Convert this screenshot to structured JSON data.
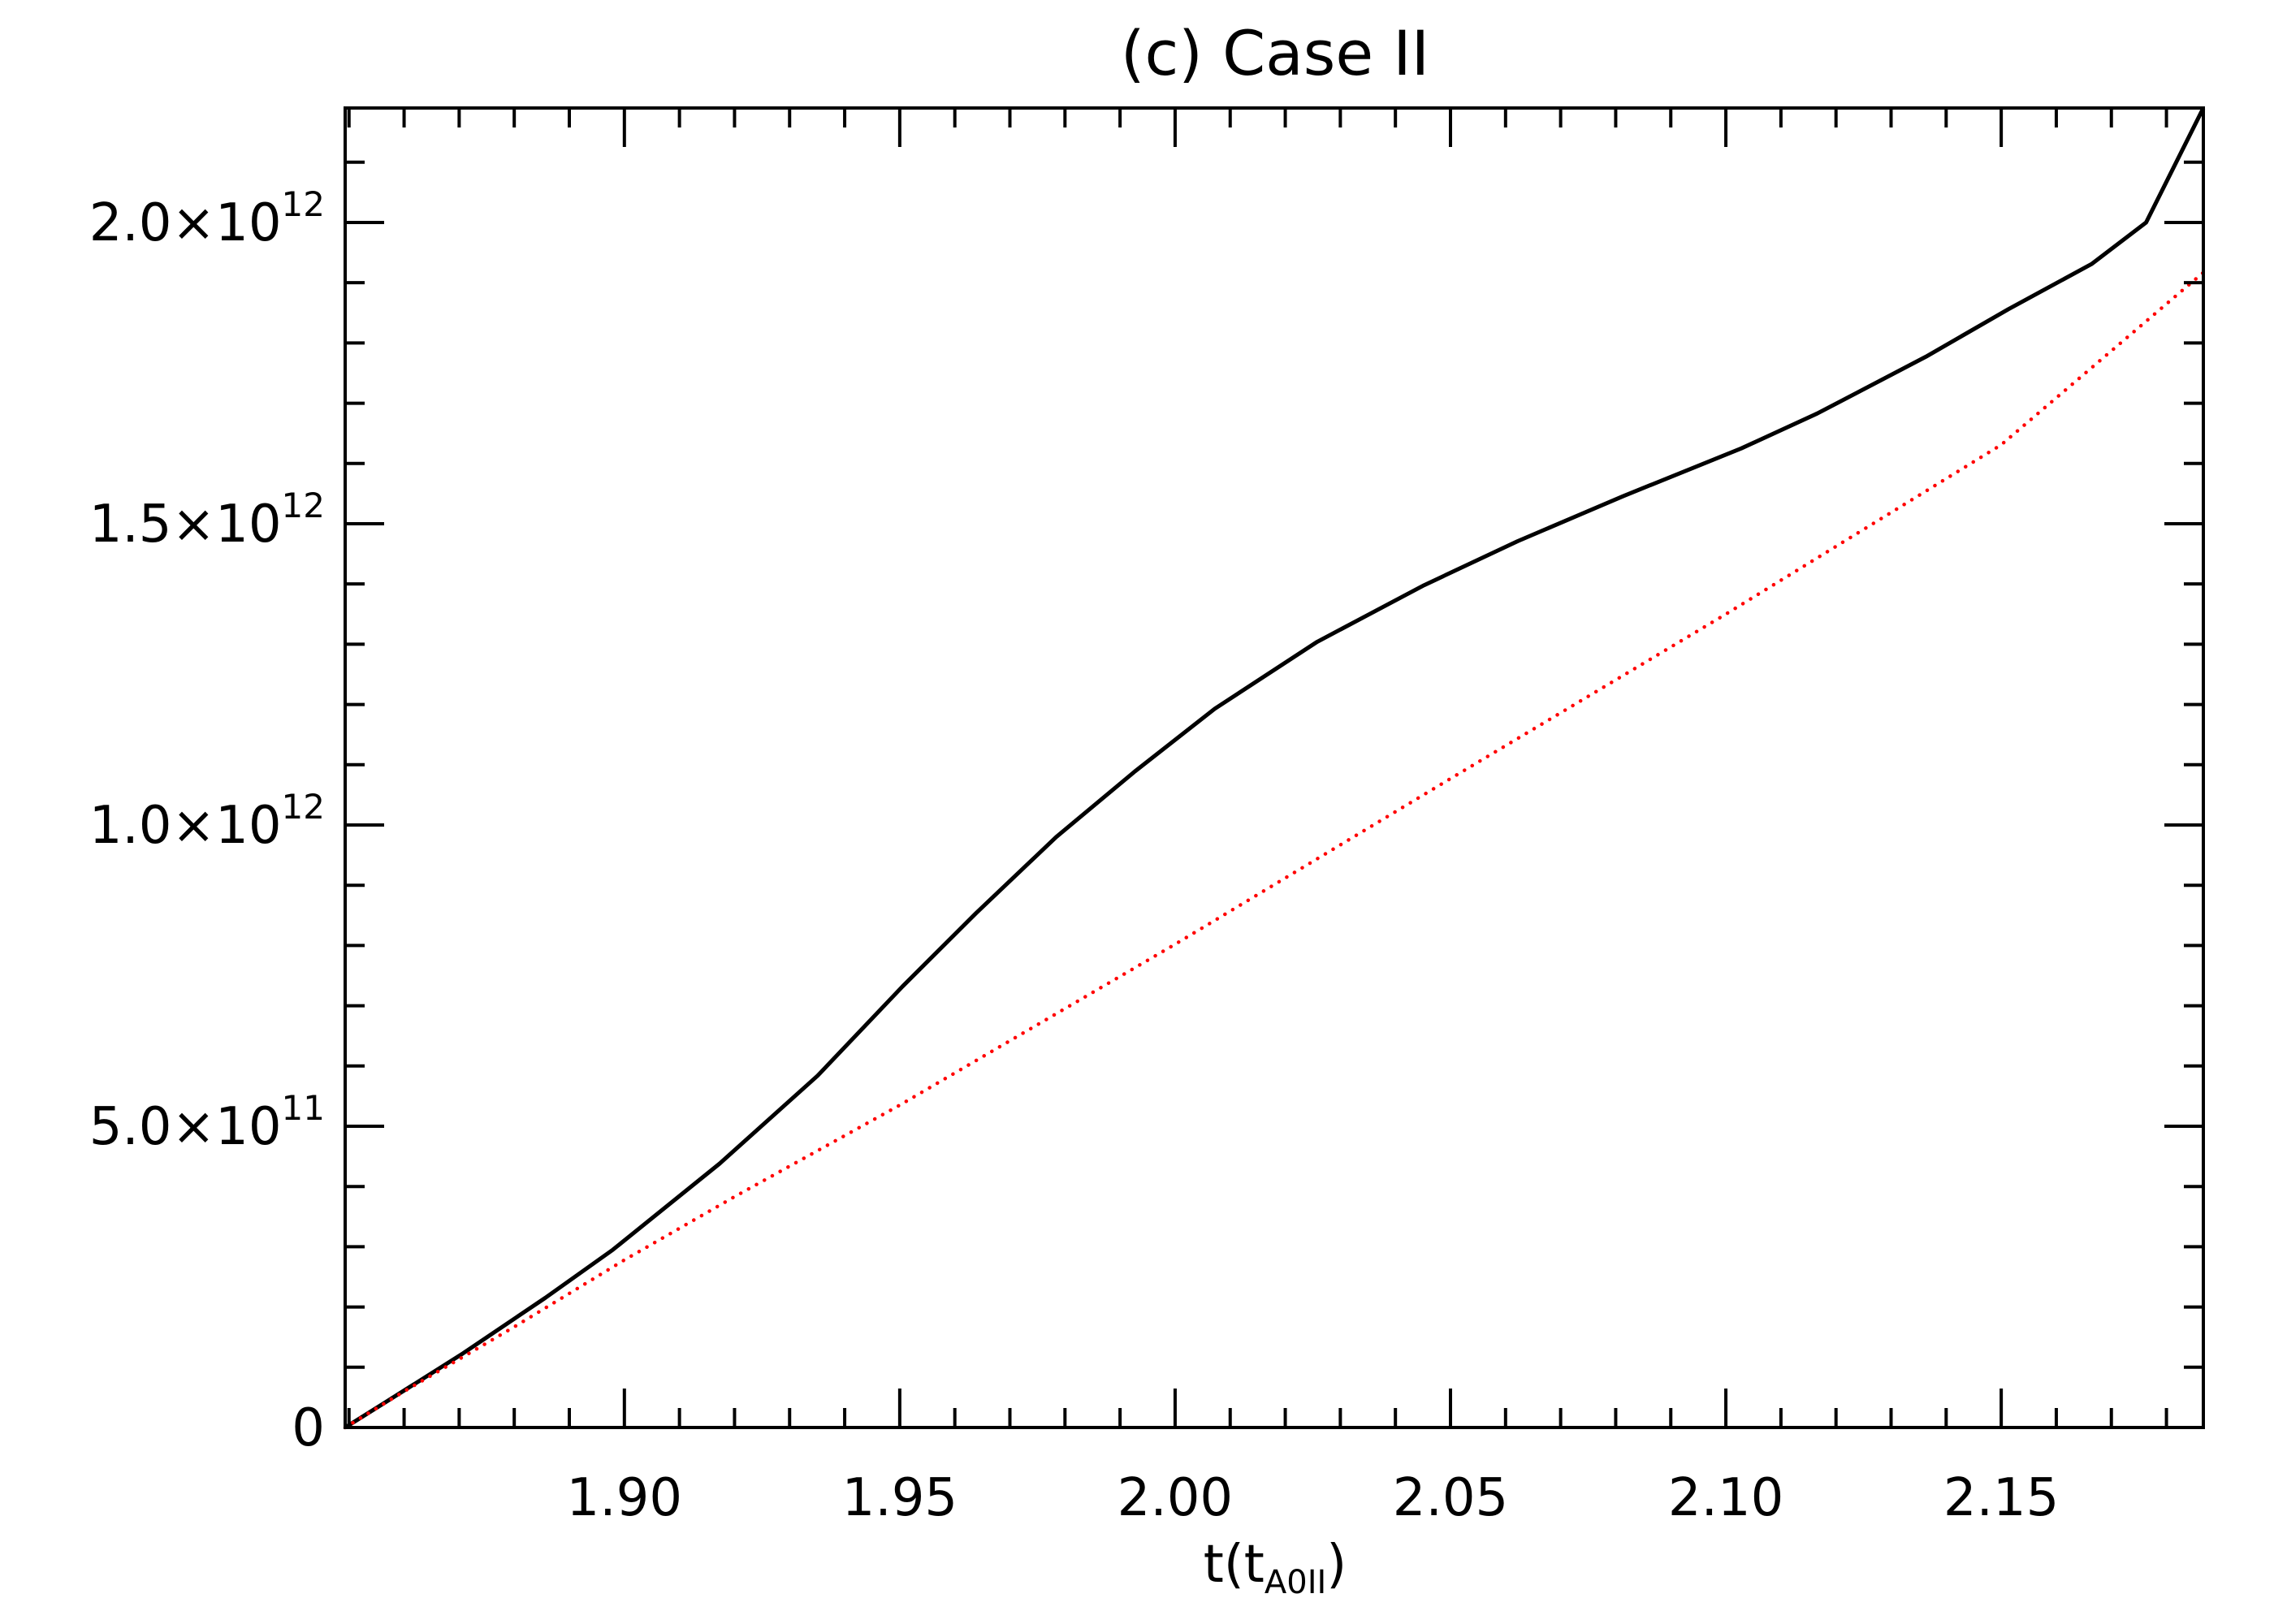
{
  "chart_data": {
    "type": "line",
    "title": "(c) Case II",
    "xlabel": {
      "main": "t(t",
      "sub": "A0II",
      "close": ")"
    },
    "ylabel": "",
    "xlim": [
      1.8493,
      2.1867
    ],
    "ylim": [
      0,
      2190000000000.0
    ],
    "grid": false,
    "legend": "none",
    "x_ticks": [
      {
        "value": 1.9,
        "label": "1.90"
      },
      {
        "value": 1.95,
        "label": "1.95"
      },
      {
        "value": 2.0,
        "label": "2.00"
      },
      {
        "value": 2.05,
        "label": "2.05"
      },
      {
        "value": 2.1,
        "label": "2.10"
      },
      {
        "value": 2.15,
        "label": "2.15"
      }
    ],
    "x_minor_step": 0.01,
    "y_ticks": [
      {
        "value": 0,
        "mantissa": "0",
        "exp": ""
      },
      {
        "value": 500000000000.0,
        "mantissa": "5.0×10",
        "exp": "11"
      },
      {
        "value": 1000000000000.0,
        "mantissa": "1.0×10",
        "exp": "12"
      },
      {
        "value": 1500000000000.0,
        "mantissa": "1.5×10",
        "exp": "12"
      },
      {
        "value": 2000000000000.0,
        "mantissa": "2.0×10",
        "exp": "12"
      }
    ],
    "y_minor_step": 100000000000.0,
    "series": [
      {
        "style": "solid",
        "color": "#000000",
        "x": [
          1.8493,
          1.8563,
          1.8707,
          1.8856,
          1.8979,
          1.9173,
          1.9351,
          1.9505,
          1.9639,
          1.9784,
          1.9927,
          2.0072,
          2.0258,
          2.0452,
          2.0622,
          2.0814,
          2.1028,
          2.1166,
          2.1363,
          2.1513,
          2.1664,
          2.1763,
          2.1867
        ],
        "y": [
          0,
          40000000000.0,
          123000000000.0,
          215000000000.0,
          295000000000.0,
          438000000000.0,
          584000000000.0,
          732000000000.0,
          854000000000.0,
          980000000000.0,
          1089000000000.0,
          1193000000000.0,
          1304000000000.0,
          1398000000000.0,
          1471000000000.0,
          1546000000000.0,
          1625000000000.0,
          1683000000000.0,
          1777000000000.0,
          1856000000000.0,
          1931000000000.0,
          2000000000000.0,
          2190000000000.0
        ]
      },
      {
        "style": "dotted",
        "color": "#ff0000",
        "x": [
          1.8493,
          1.86,
          1.88,
          1.9,
          1.92,
          1.95,
          2.0,
          2.05,
          2.1,
          2.15,
          2.1867
        ],
        "y": [
          0,
          60000000000.0,
          167000000000.0,
          278000000000.0,
          383000000000.0,
          535000000000.0,
          802000000000.0,
          1077000000000.0,
          1350000000000.0,
          1631000000000.0,
          1917000000000.0
        ]
      }
    ]
  }
}
